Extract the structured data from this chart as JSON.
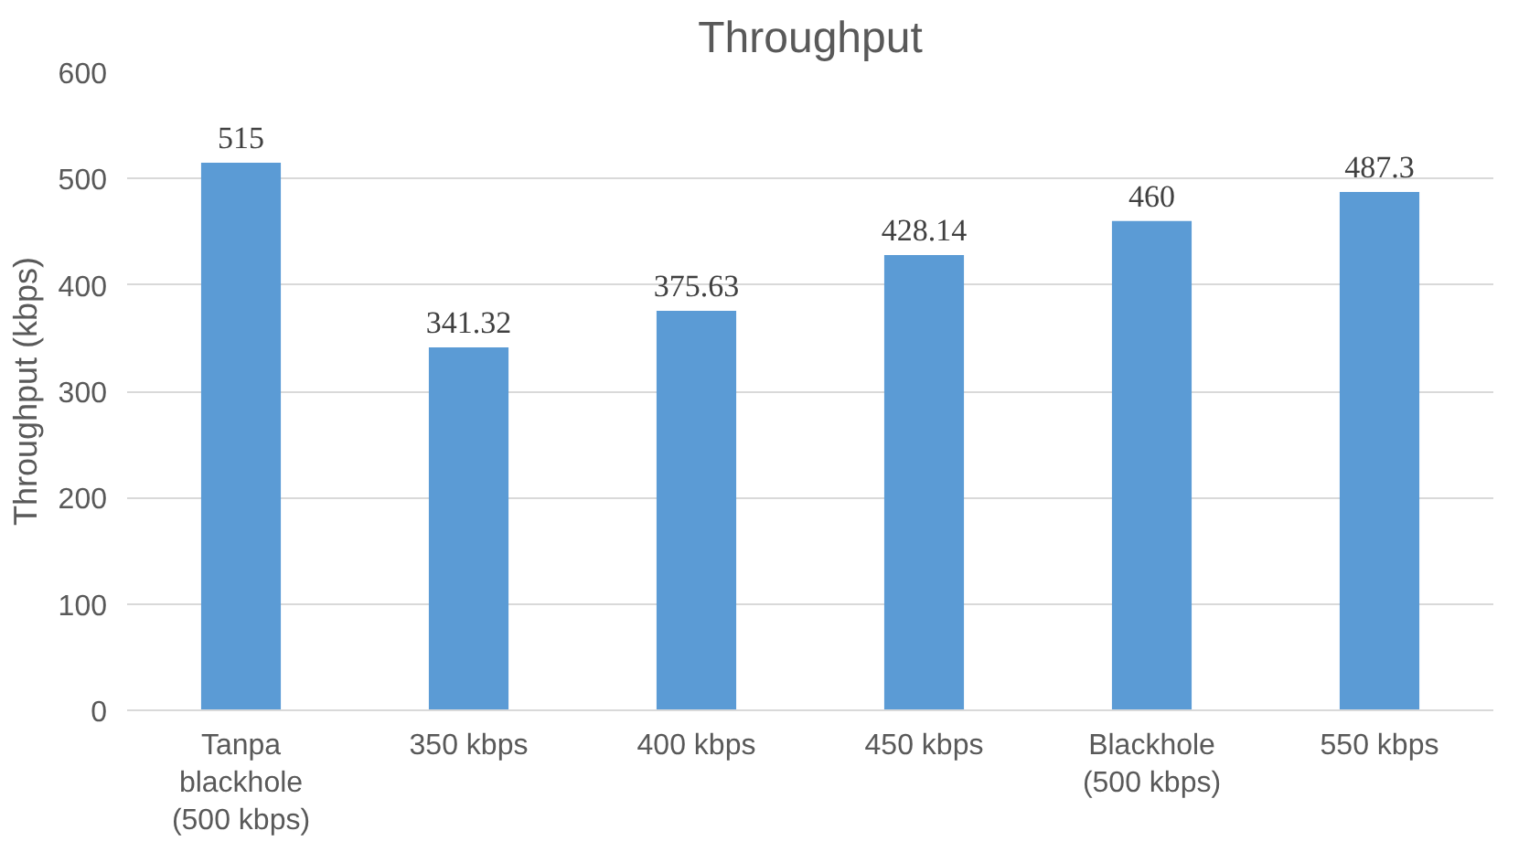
{
  "chart_data": {
    "type": "bar",
    "title": "Throughput",
    "ylabel": "Throughput (kbps)",
    "categories": [
      "Tanpa blackhole (500 kbps)",
      "350 kbps",
      "400 kbps",
      "450 kbps",
      "Blackhole (500 kbps)",
      "550 kbps"
    ],
    "values": [
      515,
      341.32,
      375.63,
      428.14,
      460,
      487.3
    ],
    "color": "#5b9bd5",
    "ylim": [
      0,
      600
    ],
    "yticks": [
      0,
      100,
      200,
      300,
      400,
      500,
      600
    ],
    "grid": "y",
    "data_labels": true
  }
}
